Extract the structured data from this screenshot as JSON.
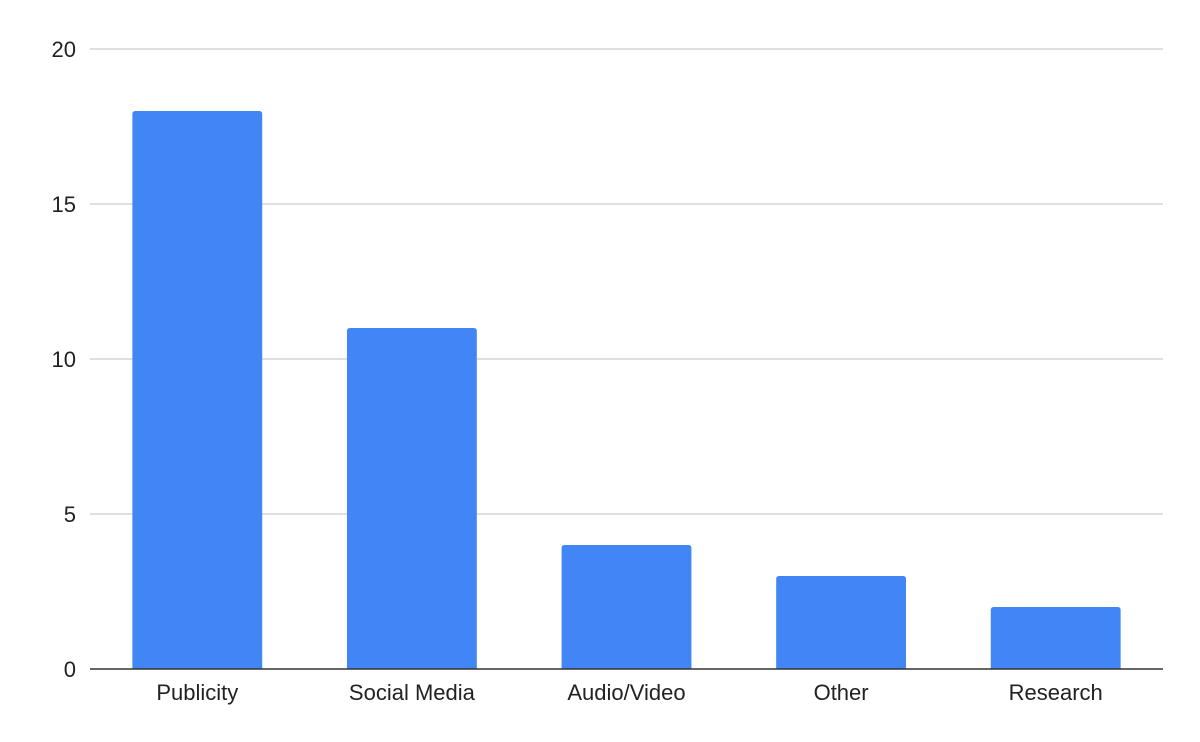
{
  "chart_data": {
    "type": "bar",
    "title": "",
    "xlabel": "",
    "ylabel": "",
    "categories": [
      "Publicity",
      "Social Media",
      "Audio/Video",
      "Other",
      "Research"
    ],
    "values": [
      18,
      11,
      4,
      3,
      2
    ],
    "ylim": [
      0,
      20
    ],
    "yticks": [
      0,
      5,
      10,
      15,
      20
    ],
    "grid": true,
    "legend": "none",
    "bar_color": "#4285F4"
  }
}
